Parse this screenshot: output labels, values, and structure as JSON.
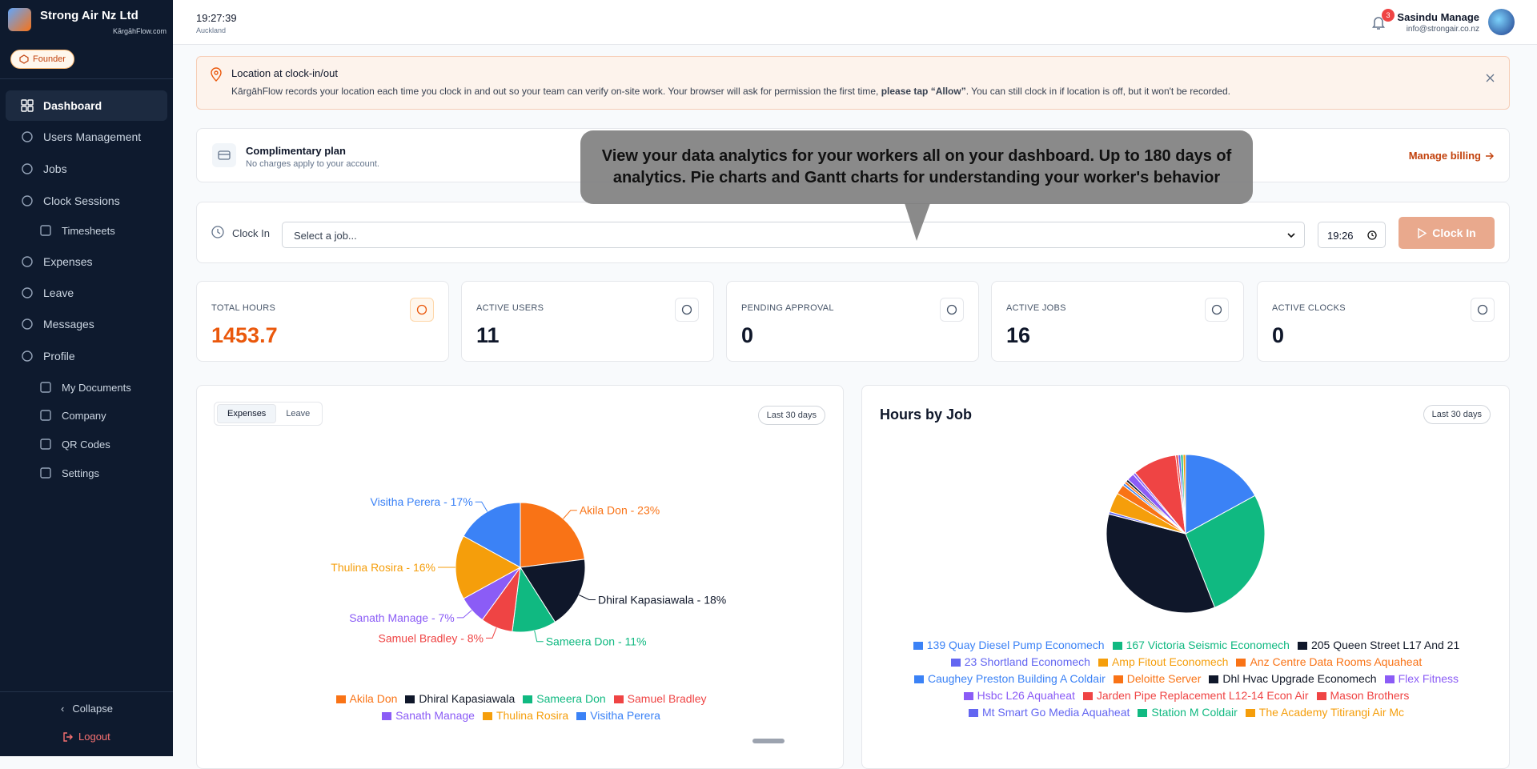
{
  "sidebar": {
    "company": "Strong Air Nz Ltd",
    "domain": "KārgāhFlow.com",
    "badge": "Founder",
    "nav": [
      "Dashboard",
      "Users Management",
      "Jobs",
      "Clock Sessions",
      "Timesheets",
      "Expenses",
      "Leave",
      "Messages",
      "Profile",
      "My Documents",
      "Company",
      "QR Codes",
      "Settings"
    ],
    "collapse": "Collapse",
    "logout": "Logout"
  },
  "header": {
    "time": "19:27:39",
    "timezone": "Auckland",
    "notifications": 3,
    "user_name": "Sasindu Manage",
    "user_email": "info@strongair.co.nz"
  },
  "banner": {
    "title": "Location at clock-in/out",
    "text_before": "KārgāhFlow records your location each time you clock in and out so your team can verify on-site work. Your browser will ask for permission the first time, ",
    "text_bold": "please tap “Allow”",
    "text_after": ". You can still clock in if location is off, but it won't be recorded."
  },
  "plan": {
    "title": "Complimentary plan",
    "subtitle": "No charges apply to your account.",
    "link": "Manage billing"
  },
  "tooltip": "View your data analytics for your workers all on your dashboard. Up to 180 days of analytics. Pie charts and Gantt charts for understanding your worker's behavior",
  "clock": {
    "label": "Clock In",
    "placeholder": "Select a job...",
    "time": "19:26",
    "button": "Clock In"
  },
  "stats": [
    {
      "label": "TOTAL HOURS",
      "value": 1453.7
    },
    {
      "label": "ACTIVE USERS",
      "value": 11
    },
    {
      "label": "PENDING APPROVAL",
      "value": 0
    },
    {
      "label": "ACTIVE JOBS",
      "value": 16
    },
    {
      "label": "ACTIVE CLOCKS",
      "value": 0
    }
  ],
  "expenses_chart": {
    "type": "pie",
    "tabs": [
      "Expenses",
      "Leave"
    ],
    "range": "Last 30 days",
    "categories": [
      "Akila Don",
      "Dhiral Kapasiawala",
      "Sameera Don",
      "Samuel Bradley",
      "Sanath Manage",
      "Thulina Rosira",
      "Visitha Perera"
    ],
    "values": [
      23,
      18,
      11,
      8,
      7,
      16,
      17
    ],
    "value_labels": [
      "Akila Don - 23%",
      "Dhiral Kapasiawala - 18%",
      "Sameera Don - 11%",
      "Samuel Bradley - 8%",
      "Sanath Manage - 7%",
      "Thulina Rosira - 16%",
      "Visitha Perera - 17%"
    ],
    "colors": [
      "#f97316",
      "#0f172a",
      "#10b981",
      "#ef4444",
      "#8b5cf6",
      "#f59e0b",
      "#3b82f6"
    ]
  },
  "hours_chart": {
    "type": "pie",
    "title": "Hours by Job",
    "range": "Last 30 days",
    "categories": [
      "139 Quay Diesel Pump Economech",
      "167 Victoria Seismic Economech",
      "205 Queen Street L17 And 21",
      "23 Shortland Economech",
      "Amp Fitout Economech",
      "Anz Centre Data Rooms Aquaheat",
      "Caughey Preston Building A Coldair",
      "Deloitte Server",
      "Dhl Hvac Upgrade Economech",
      "Flex Fitness",
      "Hsbc L26 Aquaheat",
      "Jarden Pipe Replacement L12-14 Econ Air",
      "Mason Brothers",
      "Mt Smart Go Media Aquaheat",
      "Station M Coldair",
      "The Academy Titirangi Air Mc"
    ],
    "values": [
      17,
      27,
      35,
      0.5,
      4,
      2,
      0.5,
      0.5,
      0.5,
      1.5,
      0.5,
      9,
      0.5,
      0.5,
      0.5,
      0.5
    ],
    "colors": [
      "#3b82f6",
      "#10b981",
      "#0f172a",
      "#6366f1",
      "#f59e0b",
      "#f97316",
      "#3b82f6",
      "#f97316",
      "#0f172a",
      "#8b5cf6",
      "#8b5cf6",
      "#ef4444",
      "#ef4444",
      "#6366f1",
      "#10b981",
      "#f59e0b"
    ]
  }
}
